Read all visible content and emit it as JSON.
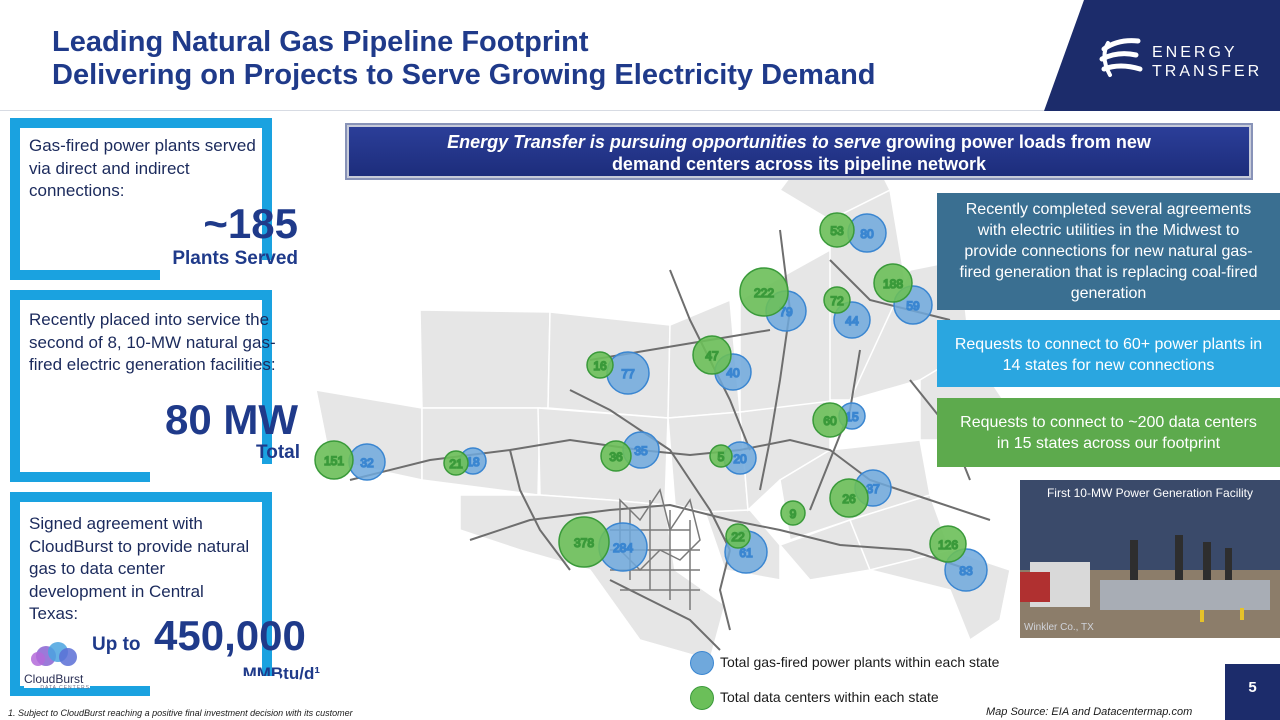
{
  "header": {
    "title_line1": "Leading Natural Gas Pipeline Footprint",
    "title_line2": "Delivering on Projects to Serve Growing Electricity Demand",
    "logo_line1": "ENERGY",
    "logo_line2": "TRANSFER"
  },
  "stats": {
    "plants": {
      "text": "Gas-fired power plants served via direct and indirect connections:",
      "value": "~185",
      "label": "Plants Served"
    },
    "mw": {
      "text": "Recently placed into service the second of 8, 10-MW natural gas-fired electric generation facilities:",
      "value": "80 MW",
      "label": "Total"
    },
    "cloudburst": {
      "text": "Signed agreement with CloudBurst to provide natural gas to data center development in Central Texas:",
      "prefix": "Up to",
      "value": "450,000",
      "label": "MMBtu/d¹",
      "logo_name": "CloudBurst",
      "logo_sub": "DATA CENTERS"
    }
  },
  "banner": {
    "italic": "Energy Transfer is pursuing opportunities to serve",
    "rest_line1": " growing power loads from new",
    "line2": "demand centers across its pipeline network"
  },
  "callouts": {
    "midwest": "Recently completed several agreements with electric utilities in the Midwest to provide connections for new natural gas-fired generation that is replacing coal-fired generation",
    "power": "Requests to connect to 60+ power plants in 14 states for new connections",
    "data": "Requests to connect to ~200 data centers in 15 states across our footprint"
  },
  "photo": {
    "caption": "First 10-MW Power Generation Facility",
    "location": "Winkler Co., TX"
  },
  "map": {
    "colors": {
      "power": "#6fa8dc",
      "data": "#6bbf59"
    },
    "power_plants": [
      "80",
      "79",
      "44",
      "59",
      "77",
      "40",
      "15",
      "32",
      "18",
      "35",
      "20",
      "37",
      "284",
      "61",
      "83"
    ],
    "data_centers": [
      "53",
      "222",
      "72",
      "188",
      "16",
      "47",
      "60",
      "151",
      "21",
      "36",
      "5",
      "26",
      "9",
      "378",
      "22",
      "126"
    ]
  },
  "legend": {
    "power": "Total gas-fired power plants within each state",
    "data": "Total data centers within each state"
  },
  "footnote": "1.     Subject to CloudBurst reaching a positive final investment decision with its customer",
  "source": "Map Source: EIA and Datacentermap.com",
  "page_number": "5"
}
